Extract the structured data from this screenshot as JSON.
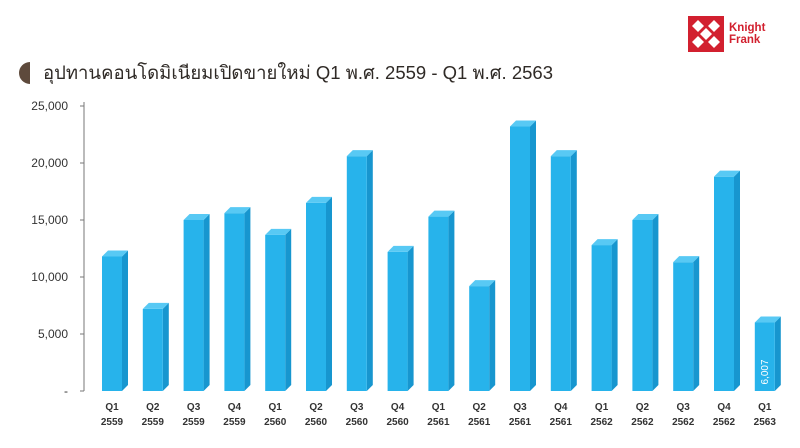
{
  "brand": {
    "logo_line1": "Knight",
    "logo_line2": "Frank",
    "color": "#d2202f",
    "logo_icon": "knight-frank-diamond-logo"
  },
  "accent_color": "#5e4a3c",
  "chart_data": {
    "type": "bar",
    "title": "อุปทานคอนโดมิเนียมเปิดขายใหม่ Q1 พ.ศ. 2559 - Q1 พ.ศ. 2563",
    "xlabel": "",
    "ylabel": "",
    "ylim": [
      0,
      25000
    ],
    "yticks": [
      0,
      5000,
      10000,
      15000,
      20000,
      25000
    ],
    "ytick_labels": [
      "-",
      "5,000",
      "10,000",
      "15,000",
      "20,000",
      "25,000"
    ],
    "grid": false,
    "legend": "none",
    "bar_style": "3d",
    "colors": {
      "front": "#27b3eb",
      "side": "#1796cf",
      "top": "#58c9f4"
    },
    "categories": [
      [
        "Q1",
        "2559"
      ],
      [
        "Q2",
        "2559"
      ],
      [
        "Q3",
        "2559"
      ],
      [
        "Q4",
        "2559"
      ],
      [
        "Q1",
        "2560"
      ],
      [
        "Q2",
        "2560"
      ],
      [
        "Q3",
        "2560"
      ],
      [
        "Q4",
        "2560"
      ],
      [
        "Q1",
        "2561"
      ],
      [
        "Q2",
        "2561"
      ],
      [
        "Q3",
        "2561"
      ],
      [
        "Q4",
        "2561"
      ],
      [
        "Q1",
        "2562"
      ],
      [
        "Q2",
        "2562"
      ],
      [
        "Q3",
        "2562"
      ],
      [
        "Q4",
        "2562"
      ],
      [
        "Q1",
        "2563"
      ]
    ],
    "values": [
      11800,
      7200,
      15000,
      15600,
      13700,
      16500,
      20600,
      12200,
      15300,
      9200,
      23200,
      20600,
      12800,
      15000,
      11300,
      18800,
      6007
    ],
    "data_labels": [
      "",
      "",
      "",
      "",
      "",
      "",
      "",
      "",
      "",
      "",
      "",
      "",
      "",
      "",
      "",
      "",
      "6,007"
    ]
  }
}
